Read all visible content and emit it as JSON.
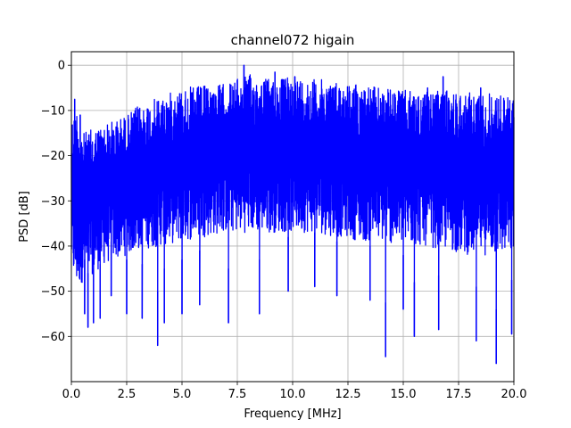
{
  "chart_data": {
    "type": "line",
    "title": "channel072 higain",
    "xlabel": "Frequency [MHz]",
    "ylabel": "PSD [dB]",
    "xlim": [
      0,
      20
    ],
    "ylim": [
      -70,
      3
    ],
    "grid": true,
    "xticks": [
      0,
      2.5,
      5,
      7.5,
      10,
      12.5,
      15,
      17.5,
      20
    ],
    "xtick_labels": [
      "0.0",
      "2.5",
      "5.0",
      "7.5",
      "10.0",
      "12.5",
      "15.0",
      "17.5",
      "20.0"
    ],
    "yticks": [
      0,
      -10,
      -20,
      -30,
      -40,
      -50,
      -60
    ],
    "ytick_labels": [
      "0",
      "−10",
      "−20",
      "−30",
      "−40",
      "−50",
      "−60"
    ],
    "series": [
      {
        "color": "#0000ff",
        "envelope_x": [
          0,
          0.2,
          0.5,
          1,
          1.5,
          2,
          2.5,
          3,
          4,
          5,
          6,
          7,
          7.5,
          8,
          9,
          10,
          11,
          12,
          12.5,
          13,
          14,
          15,
          16,
          17,
          18,
          19,
          20
        ],
        "envelope_upper": [
          -12,
          -8,
          -15,
          -14,
          -13,
          -12,
          -11,
          -9,
          -7,
          -5,
          -4.5,
          -4,
          -3,
          -2,
          -3,
          -2.5,
          -3,
          -3.5,
          -4,
          -4,
          -5,
          -5.5,
          -6,
          -5.5,
          -6,
          -6,
          -7
        ],
        "envelope_lower": [
          -45,
          -50,
          -48,
          -46,
          -44,
          -43,
          -42,
          -41,
          -40,
          -39,
          -38,
          -37,
          -37,
          -37,
          -37,
          -37,
          -37,
          -38,
          -38,
          -39,
          -39,
          -40,
          -40,
          -41,
          -42,
          -42,
          -42
        ],
        "peaks": [
          {
            "x": 0.15,
            "y": -7.5
          },
          {
            "x": 0.4,
            "y": -11
          },
          {
            "x": 7.8,
            "y": 0
          },
          {
            "x": 9.2,
            "y": -1.5
          },
          {
            "x": 10.1,
            "y": -2.5
          },
          {
            "x": 16.8,
            "y": -2.5
          },
          {
            "x": 16.1,
            "y": -5
          },
          {
            "x": 18.5,
            "y": -5
          }
        ],
        "dips": [
          {
            "x": 0.6,
            "y": -55
          },
          {
            "x": 0.75,
            "y": -58
          },
          {
            "x": 1.0,
            "y": -57
          },
          {
            "x": 1.3,
            "y": -56
          },
          {
            "x": 1.8,
            "y": -51
          },
          {
            "x": 2.5,
            "y": -55
          },
          {
            "x": 3.2,
            "y": -56
          },
          {
            "x": 3.9,
            "y": -62
          },
          {
            "x": 4.2,
            "y": -57
          },
          {
            "x": 5.0,
            "y": -55
          },
          {
            "x": 5.8,
            "y": -53
          },
          {
            "x": 7.1,
            "y": -57
          },
          {
            "x": 8.5,
            "y": -55
          },
          {
            "x": 9.8,
            "y": -50
          },
          {
            "x": 11.0,
            "y": -49
          },
          {
            "x": 12.0,
            "y": -51
          },
          {
            "x": 13.5,
            "y": -52
          },
          {
            "x": 14.2,
            "y": -64.5
          },
          {
            "x": 15.0,
            "y": -54
          },
          {
            "x": 15.5,
            "y": -60
          },
          {
            "x": 16.6,
            "y": -58.5
          },
          {
            "x": 18.3,
            "y": -61
          },
          {
            "x": 19.2,
            "y": -66
          },
          {
            "x": 19.9,
            "y": -59.5
          }
        ]
      }
    ]
  }
}
